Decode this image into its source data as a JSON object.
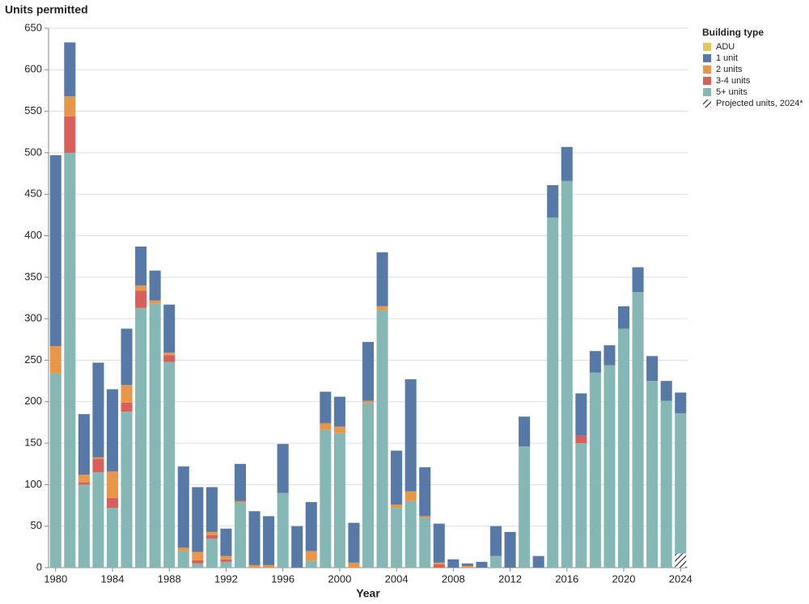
{
  "chart_data": {
    "type": "stacked_bar",
    "y_title": "Units permitted",
    "x_title": "Year",
    "legend_title": "Building type",
    "legend_position": "right",
    "x": [
      1980,
      1981,
      1982,
      1983,
      1984,
      1985,
      1986,
      1987,
      1988,
      1989,
      1990,
      1991,
      1992,
      1993,
      1994,
      1995,
      1996,
      1997,
      1998,
      1999,
      2000,
      2001,
      2002,
      2003,
      2004,
      2005,
      2006,
      2007,
      2008,
      2009,
      2010,
      2011,
      2012,
      2013,
      2014,
      2015,
      2016,
      2017,
      2018,
      2019,
      2020,
      2021,
      2022,
      2023,
      2024
    ],
    "xlim": [
      1979.5,
      2024.5
    ],
    "xticks": [
      1980,
      1984,
      1988,
      1992,
      1996,
      2000,
      2004,
      2008,
      2012,
      2016,
      2020,
      2024
    ],
    "ylim": [
      0,
      650
    ],
    "yticks": [
      0,
      50,
      100,
      150,
      200,
      250,
      300,
      350,
      400,
      450,
      500,
      550,
      600,
      650
    ],
    "grid": true,
    "series": [
      {
        "name": "ADU",
        "color": "#e4c65b",
        "values": [
          0,
          0,
          0,
          0,
          0,
          0,
          0,
          0,
          0,
          0,
          0,
          0,
          0,
          0,
          0,
          0,
          0,
          0,
          0,
          0,
          0,
          0,
          0,
          0,
          0,
          0,
          0,
          0,
          0,
          0,
          0,
          0,
          0,
          0,
          0,
          0,
          0,
          0,
          0,
          0,
          0,
          0,
          0,
          0,
          0
        ]
      },
      {
        "name": "1 unit",
        "color": "#5779a8",
        "values": [
          230,
          65,
          73,
          114,
          99,
          68,
          47,
          36,
          58,
          98,
          78,
          54,
          33,
          45,
          65,
          59,
          59,
          50,
          59,
          38,
          36,
          48,
          71,
          65,
          65,
          135,
          59,
          47,
          10,
          3,
          7,
          36,
          43,
          36,
          14,
          39,
          41,
          51,
          26,
          24,
          27,
          30,
          30,
          24,
          25
        ]
      },
      {
        "name": "2 units",
        "color": "#e8974a",
        "values": [
          33,
          24,
          9,
          2,
          32,
          21,
          6,
          4,
          3,
          4,
          10,
          4,
          4,
          2,
          3,
          3,
          0,
          0,
          12,
          8,
          8,
          6,
          3,
          5,
          4,
          12,
          2,
          2,
          0,
          2,
          0,
          0,
          0,
          0,
          0,
          0,
          0,
          0,
          0,
          0,
          0,
          0,
          0,
          0,
          0
        ]
      },
      {
        "name": "3-4 units",
        "color": "#d9605a",
        "values": [
          0,
          44,
          3,
          16,
          12,
          11,
          21,
          0,
          8,
          0,
          4,
          4,
          3,
          0,
          0,
          0,
          0,
          0,
          0,
          0,
          0,
          0,
          0,
          0,
          0,
          0,
          0,
          4,
          0,
          0,
          0,
          0,
          0,
          0,
          0,
          0,
          0,
          9,
          0,
          0,
          0,
          0,
          0,
          0,
          0
        ]
      },
      {
        "name": "5+ units",
        "color": "#85b8b4",
        "values": [
          234,
          500,
          100,
          115,
          72,
          188,
          313,
          318,
          248,
          20,
          5,
          35,
          7,
          78,
          0,
          0,
          90,
          0,
          8,
          166,
          162,
          0,
          198,
          310,
          72,
          80,
          60,
          0,
          0,
          0,
          0,
          14,
          0,
          146,
          0,
          422,
          466,
          150,
          235,
          244,
          288,
          332,
          225,
          201,
          169
        ]
      },
      {
        "name": "Projected units, 2024*",
        "color": "#333333",
        "hatch": true,
        "values": [
          null,
          null,
          null,
          null,
          null,
          null,
          null,
          null,
          null,
          null,
          null,
          null,
          null,
          null,
          null,
          null,
          null,
          null,
          null,
          null,
          null,
          null,
          null,
          null,
          null,
          null,
          null,
          null,
          null,
          null,
          null,
          null,
          null,
          null,
          null,
          null,
          null,
          null,
          null,
          null,
          null,
          null,
          null,
          null,
          17
        ]
      }
    ]
  }
}
